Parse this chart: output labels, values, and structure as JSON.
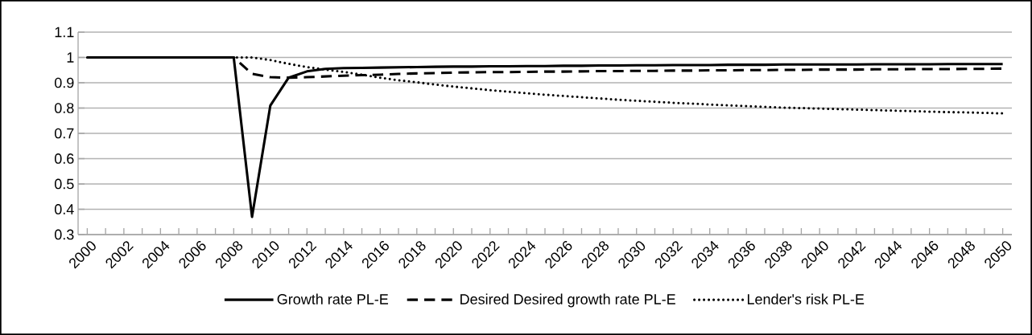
{
  "chart_data": {
    "type": "line",
    "categories": [
      "2000",
      null,
      "2002",
      null,
      "2004",
      null,
      "2006",
      null,
      "2008",
      null,
      "2010",
      null,
      "2012",
      null,
      "2014",
      null,
      "2016",
      null,
      "2018",
      null,
      "2020",
      null,
      "2022",
      null,
      "2024",
      null,
      "2026",
      null,
      "2028",
      null,
      "2030",
      null,
      "2032",
      null,
      "2034",
      null,
      "2036",
      null,
      "2038",
      null,
      "2040",
      null,
      "2042",
      null,
      "2044",
      null,
      "2046",
      null,
      "2048",
      null,
      "2050"
    ],
    "series": [
      {
        "name": "Growth rate  PL-E",
        "color": "#000000",
        "line_style": "solid",
        "values": [
          1,
          1,
          1,
          1,
          1,
          1,
          1,
          1,
          1,
          0.37,
          0.81,
          0.92,
          0.945,
          0.955,
          0.958,
          0.959,
          0.96,
          0.961,
          0.962,
          0.963,
          0.964,
          0.964,
          0.965,
          0.965,
          0.966,
          0.966,
          0.967,
          0.967,
          0.968,
          0.968,
          0.969,
          0.969,
          0.97,
          0.97,
          0.97,
          0.971,
          0.971,
          0.971,
          0.972,
          0.972,
          0.972,
          0.972,
          0.972,
          0.973,
          0.973,
          0.973,
          0.973,
          0.974,
          0.974,
          0.974,
          0.974
        ]
      },
      {
        "name": "Desired Desired growth rate PL-E",
        "color": "#000000",
        "line_style": "dashed",
        "values": [
          1,
          1,
          1,
          1,
          1,
          1,
          1,
          1,
          1,
          0.935,
          0.922,
          0.92,
          0.922,
          0.925,
          0.928,
          0.93,
          0.932,
          0.935,
          0.937,
          0.938,
          0.94,
          0.941,
          0.942,
          0.942,
          0.943,
          0.944,
          0.944,
          0.945,
          0.946,
          0.946,
          0.947,
          0.947,
          0.948,
          0.948,
          0.949,
          0.949,
          0.95,
          0.95,
          0.951,
          0.951,
          0.952,
          0.952,
          0.952,
          0.953,
          0.953,
          0.954,
          0.954,
          0.954,
          0.955,
          0.955,
          0.956
        ]
      },
      {
        "name": "Lender's risk PL-E",
        "color": "#000000",
        "line_style": "dotted",
        "values": [
          1,
          1,
          1,
          1,
          1,
          1,
          1,
          1,
          1,
          1,
          0.99,
          0.975,
          0.962,
          0.952,
          0.943,
          0.932,
          0.92,
          0.91,
          0.902,
          0.893,
          0.885,
          0.878,
          0.871,
          0.865,
          0.859,
          0.853,
          0.848,
          0.843,
          0.838,
          0.833,
          0.829,
          0.825,
          0.821,
          0.818,
          0.814,
          0.811,
          0.808,
          0.805,
          0.802,
          0.8,
          0.798,
          0.796,
          0.794,
          0.792,
          0.79,
          0.788,
          0.786,
          0.784,
          0.783,
          0.781,
          0.779
        ]
      }
    ],
    "ylim": [
      0.3,
      1.1
    ],
    "yticks": [
      0.3,
      0.4,
      0.5,
      0.6,
      0.7,
      0.8,
      0.9,
      1,
      1.1
    ],
    "grid": "y",
    "legend": "bottom"
  }
}
